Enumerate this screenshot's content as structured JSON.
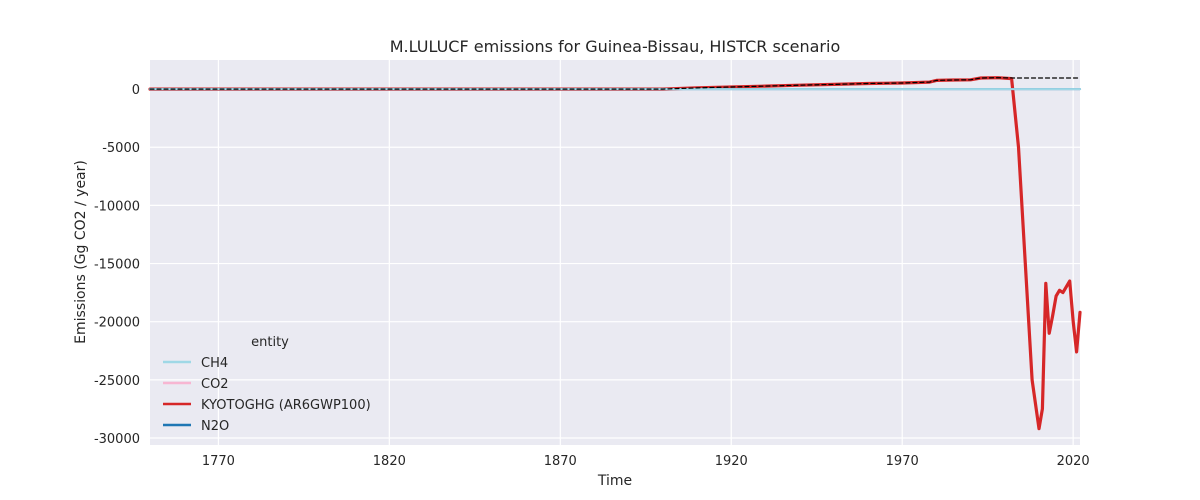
{
  "chart_data": {
    "type": "line",
    "title": "M.LULUCF emissions for Guinea-Bissau, HISTCR scenario",
    "xlabel": "Time",
    "ylabel": "Emissions (Gg CO2 / year)",
    "xlim": [
      1750,
      2022
    ],
    "ylim": [
      -30600,
      2500
    ],
    "x_ticks": [
      1770,
      1820,
      1870,
      1920,
      1970,
      2020
    ],
    "y_ticks": [
      0,
      -5000,
      -10000,
      -15000,
      -20000,
      -25000,
      -30000
    ],
    "grid": true,
    "legend": {
      "title": "entity",
      "placement": "lower-left",
      "entries": [
        "CH4",
        "CO2",
        "KYOTOGHG (AR6GWP100)",
        "N2O"
      ]
    },
    "series": [
      {
        "name": "CH4",
        "color": "#9fd8e6",
        "style": "solid",
        "x": [
          1750,
          2022
        ],
        "y": [
          0,
          0
        ]
      },
      {
        "name": "CO2",
        "color": "#f7b6d2",
        "style": "solid",
        "x": [
          1750,
          1900,
          1910,
          1920,
          1930,
          1940,
          1950,
          1960,
          1970,
          1978,
          1980,
          1985,
          1990,
          1993,
          1998,
          2002,
          2004,
          2006,
          2008,
          2010,
          2011,
          2012,
          2013,
          2014,
          2015,
          2016,
          2017,
          2018,
          2019,
          2020,
          2021,
          2022
        ],
        "y": [
          0,
          0,
          100,
          180,
          260,
          330,
          400,
          480,
          520,
          600,
          750,
          780,
          800,
          950,
          980,
          900,
          -5000,
          -15000,
          -25000,
          -29200,
          -27500,
          -16700,
          -21000,
          -19500,
          -17800,
          -17300,
          -17500,
          -17000,
          -16500,
          -20000,
          -22600,
          -19200
        ]
      },
      {
        "name": "KYOTOGHG (AR6GWP100)",
        "color": "#d62728",
        "style": "solid",
        "x": [
          1750,
          1900,
          1910,
          1920,
          1930,
          1940,
          1950,
          1960,
          1970,
          1978,
          1980,
          1985,
          1990,
          1993,
          1998,
          2002,
          2004,
          2006,
          2008,
          2010,
          2011,
          2012,
          2013,
          2014,
          2015,
          2016,
          2017,
          2018,
          2019,
          2020,
          2021,
          2022
        ],
        "y": [
          0,
          0,
          100,
          180,
          260,
          330,
          400,
          480,
          520,
          600,
          750,
          780,
          800,
          950,
          980,
          900,
          -5000,
          -15000,
          -25000,
          -29200,
          -27500,
          -16700,
          -21000,
          -19500,
          -17800,
          -17300,
          -17500,
          -17000,
          -16500,
          -20000,
          -22600,
          -19200
        ]
      },
      {
        "name": "N2O",
        "color": "#1f77b4",
        "style": "solid",
        "x": [
          1750,
          2022
        ],
        "y": [
          0,
          0
        ]
      },
      {
        "color": "#000000",
        "style": "dashed",
        "x": [
          1750,
          1900,
          1910,
          1920,
          1930,
          1940,
          1950,
          1960,
          1970,
          1978,
          1980,
          1985,
          1990,
          1993,
          1998,
          2003,
          2022
        ],
        "y": [
          0,
          0,
          100,
          180,
          260,
          330,
          400,
          480,
          520,
          600,
          750,
          780,
          800,
          950,
          980,
          950,
          950
        ]
      }
    ]
  }
}
